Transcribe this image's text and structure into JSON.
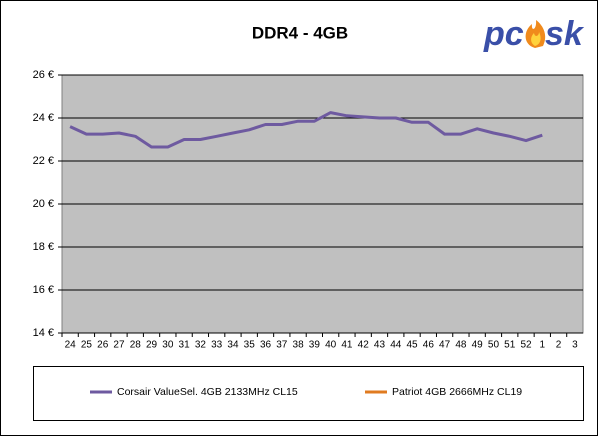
{
  "chart_data": {
    "type": "line",
    "title": "DDR4 - 4GB",
    "logo": [
      "pc",
      "sk"
    ],
    "categories": [
      "24",
      "25",
      "26",
      "27",
      "28",
      "29",
      "30",
      "31",
      "32",
      "33",
      "34",
      "35",
      "36",
      "37",
      "38",
      "39",
      "40",
      "41",
      "42",
      "43",
      "44",
      "45",
      "46",
      "47",
      "48",
      "49",
      "50",
      "51",
      "52",
      "1",
      "2",
      "3"
    ],
    "series": [
      {
        "name": "Corsair ValueSel. 4GB 2133MHz CL15",
        "color": "#6e5aa0",
        "values": [
          23.6,
          23.25,
          23.25,
          23.3,
          23.15,
          22.65,
          22.65,
          23.0,
          23.0,
          23.15,
          23.3,
          23.45,
          23.7,
          23.7,
          23.85,
          23.85,
          24.25,
          24.1,
          24.05,
          24.0,
          24.0,
          23.8,
          23.8,
          23.25,
          23.25,
          23.5,
          23.3,
          23.15,
          22.95,
          23.2,
          null,
          null
        ]
      },
      {
        "name": "Patriot 4GB 2666MHz CL19",
        "color": "#e07b20",
        "values": [
          null,
          null,
          null,
          null,
          null,
          null,
          null,
          null,
          null,
          null,
          null,
          null,
          null,
          null,
          null,
          null,
          null,
          null,
          null,
          null,
          null,
          null,
          null,
          null,
          null,
          null,
          null,
          null,
          null,
          null,
          null,
          null
        ]
      }
    ],
    "ylim": [
      14,
      26
    ],
    "yticks": [
      {
        "value": 14,
        "label": "14 €"
      },
      {
        "value": 16,
        "label": "16 €"
      },
      {
        "value": 18,
        "label": "18 €"
      },
      {
        "value": 20,
        "label": "20 €"
      },
      {
        "value": 22,
        "label": "22 €"
      },
      {
        "value": 24,
        "label": "24 €"
      },
      {
        "value": 26,
        "label": "26 €"
      }
    ],
    "grid": true,
    "legend": "bottom"
  }
}
